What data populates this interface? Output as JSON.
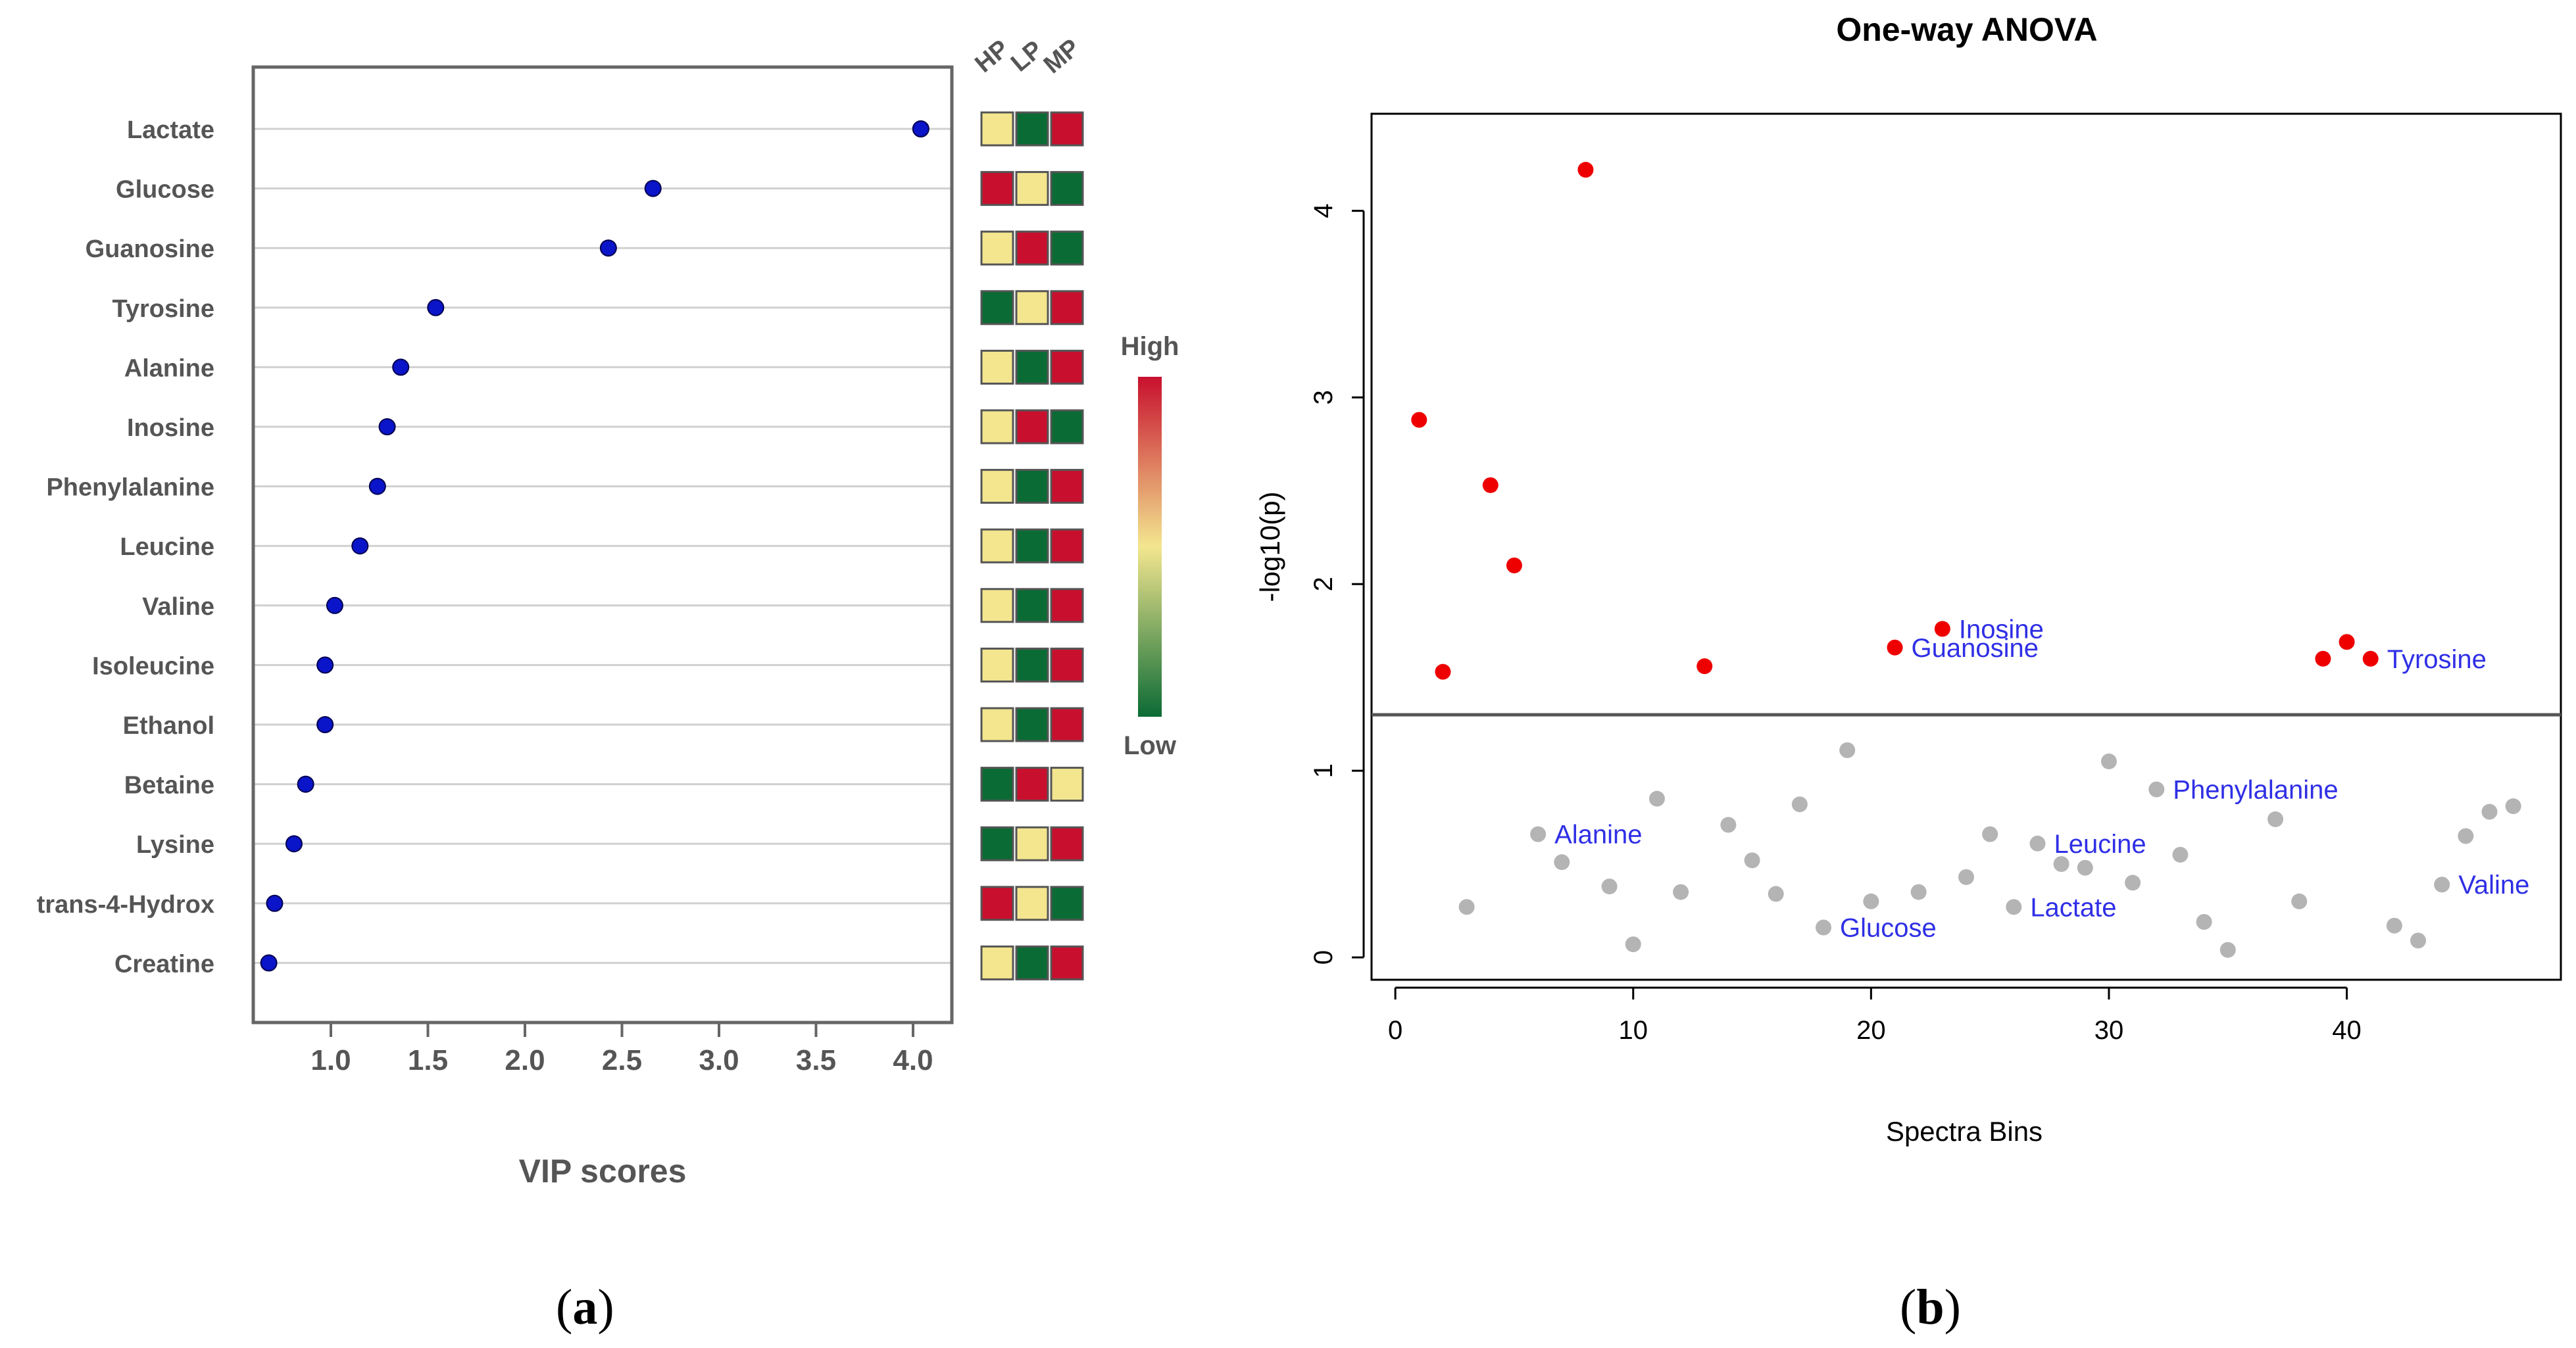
{
  "captions": {
    "a_open": "(",
    "a_letter": "a",
    "a_close": ")",
    "b_open": "(",
    "b_letter": "b",
    "b_close": ")"
  },
  "chart_data": [
    {
      "id": "vip",
      "type": "scatter",
      "title": "",
      "xlabel": "VIP scores",
      "ylabel": "",
      "xlim": [
        0.6,
        4.2
      ],
      "xticks": [
        1.0,
        1.5,
        2.0,
        2.5,
        3.0,
        3.5,
        4.0
      ],
      "xtick_labels": [
        "1.0",
        "1.5",
        "2.0",
        "2.5",
        "3.0",
        "3.5",
        "4.0"
      ],
      "grid": true,
      "point_color": "#0a14c8",
      "categories": [
        "Lactate",
        "Glucose",
        "Guanosine",
        "Tyrosine",
        "Alanine",
        "Inosine",
        "Phenylalanine",
        "Leucine",
        "Valine",
        "Isoleucine",
        "Ethanol",
        "Betaine",
        "Lysine",
        "trans-4-Hydrox",
        "Creatine"
      ],
      "values": [
        4.04,
        2.66,
        2.43,
        1.54,
        1.36,
        1.29,
        1.24,
        1.15,
        1.02,
        0.97,
        0.97,
        0.87,
        0.81,
        0.71,
        0.68
      ],
      "heatmap": {
        "columns": [
          "HP",
          "LP",
          "MP"
        ],
        "levels": [
          [
            "mid",
            "low",
            "high"
          ],
          [
            "high",
            "mid",
            "low"
          ],
          [
            "mid",
            "high",
            "low"
          ],
          [
            "low",
            "mid",
            "high"
          ],
          [
            "mid",
            "low",
            "high"
          ],
          [
            "mid",
            "high",
            "low"
          ],
          [
            "mid",
            "low",
            "high"
          ],
          [
            "mid",
            "low",
            "high"
          ],
          [
            "mid",
            "low",
            "high"
          ],
          [
            "mid",
            "low",
            "high"
          ],
          [
            "mid",
            "low",
            "high"
          ],
          [
            "low",
            "high",
            "mid"
          ],
          [
            "low",
            "mid",
            "high"
          ],
          [
            "high",
            "mid",
            "low"
          ],
          [
            "mid",
            "low",
            "high"
          ]
        ],
        "colors": {
          "high": "#c8102e",
          "mid": "#f3e68f",
          "low": "#0b6b35"
        }
      },
      "colorbar": {
        "high_label": "High",
        "low_label": "Low",
        "gradient": [
          "#c8102e",
          "#f3e68f",
          "#0b6b35"
        ]
      }
    },
    {
      "id": "anova",
      "type": "scatter",
      "title": "One-way ANOVA",
      "xlabel": "Spectra Bins",
      "ylabel": "-log10(p)",
      "xlim": [
        -1,
        49
      ],
      "ylim": [
        -0.12,
        4.52
      ],
      "xticks": [
        0,
        10,
        20,
        30,
        40
      ],
      "xtick_labels": [
        "0",
        "10",
        "20",
        "30",
        "40"
      ],
      "yticks": [
        0,
        1,
        2,
        3,
        4
      ],
      "ytick_labels": [
        "0",
        "1",
        "2",
        "3",
        "4"
      ],
      "threshold": 1.3,
      "colors": {
        "significant": "#ee0000",
        "not_significant": "#b4b4b4",
        "label": "#2f2fe6"
      },
      "significant_points": [
        {
          "x": 1,
          "y": 2.88
        },
        {
          "x": 2,
          "y": 1.53
        },
        {
          "x": 4,
          "y": 2.53
        },
        {
          "x": 5,
          "y": 2.1
        },
        {
          "x": 8,
          "y": 4.22
        },
        {
          "x": 13,
          "y": 1.56
        },
        {
          "x": 21,
          "y": 1.66
        },
        {
          "x": 23,
          "y": 1.76
        },
        {
          "x": 39,
          "y": 1.6
        },
        {
          "x": 40,
          "y": 1.69
        },
        {
          "x": 41,
          "y": 1.6
        }
      ],
      "other_points": [
        {
          "x": 3,
          "y": 0.27
        },
        {
          "x": 6,
          "y": 0.66
        },
        {
          "x": 7,
          "y": 0.51
        },
        {
          "x": 9,
          "y": 0.38
        },
        {
          "x": 10,
          "y": 0.07
        },
        {
          "x": 11,
          "y": 0.85
        },
        {
          "x": 12,
          "y": 0.35
        },
        {
          "x": 14,
          "y": 0.71
        },
        {
          "x": 15,
          "y": 0.52
        },
        {
          "x": 16,
          "y": 0.34
        },
        {
          "x": 17,
          "y": 0.82
        },
        {
          "x": 18,
          "y": 0.16
        },
        {
          "x": 19,
          "y": 1.11
        },
        {
          "x": 20,
          "y": 0.3
        },
        {
          "x": 22,
          "y": 0.35
        },
        {
          "x": 24,
          "y": 0.43
        },
        {
          "x": 25,
          "y": 0.66
        },
        {
          "x": 26,
          "y": 0.27
        },
        {
          "x": 27,
          "y": 0.61
        },
        {
          "x": 28,
          "y": 0.5
        },
        {
          "x": 29,
          "y": 0.48
        },
        {
          "x": 30,
          "y": 1.05
        },
        {
          "x": 31,
          "y": 0.4
        },
        {
          "x": 32,
          "y": 0.9
        },
        {
          "x": 33,
          "y": 0.55
        },
        {
          "x": 34,
          "y": 0.19
        },
        {
          "x": 35,
          "y": 0.04
        },
        {
          "x": 37,
          "y": 0.74
        },
        {
          "x": 38,
          "y": 0.3
        },
        {
          "x": 42,
          "y": 0.17
        },
        {
          "x": 43,
          "y": 0.09
        },
        {
          "x": 44,
          "y": 0.39
        },
        {
          "x": 45,
          "y": 0.65
        },
        {
          "x": 46,
          "y": 0.78
        },
        {
          "x": 47,
          "y": 0.81
        }
      ],
      "annotations": [
        {
          "text": "Inosine",
          "x": 23,
          "y": 1.76
        },
        {
          "text": "Guanosine",
          "x": 21,
          "y": 1.66
        },
        {
          "text": "Tyrosine",
          "x": 41,
          "y": 1.6
        },
        {
          "text": "Alanine",
          "x": 6,
          "y": 0.66
        },
        {
          "text": "Phenylalanine",
          "x": 32,
          "y": 0.9
        },
        {
          "text": "Leucine",
          "x": 27,
          "y": 0.61
        },
        {
          "text": "Glucose",
          "x": 18,
          "y": 0.16
        },
        {
          "text": "Lactate",
          "x": 26,
          "y": 0.27
        },
        {
          "text": "Valine",
          "x": 44,
          "y": 0.39
        }
      ]
    }
  ]
}
